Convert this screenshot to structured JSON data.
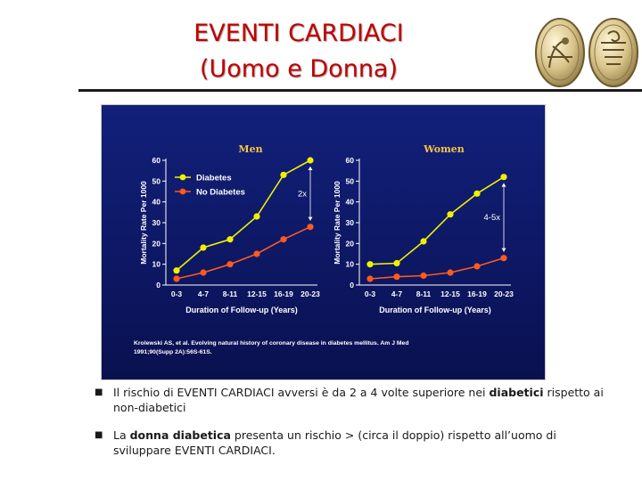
{
  "slide": {
    "title_line1": "EVENTI CARDIACI",
    "title_line2": "(Uomo e Donna)",
    "bullet_icon": "square-bullet",
    "bullets": [
      {
        "pre": "Il rischio di EVENTI CARDIACI avversi è da 2 a 4 volte superiore nei ",
        "bold": "diabetici",
        "post": " rispetto ai non-diabetici"
      },
      {
        "pre": "La ",
        "bold": "donna diabetica",
        "post": " presenta un rischio > (circa il doppio) rispetto all’uomo di sviluppare EVENTI CARDIACI."
      }
    ],
    "logo_icon": "medallion-coins-icon"
  },
  "figure": {
    "citation_line1": "Krolewski AS, et al. Evolving natural history of coronary disease in diabetes mellitus. Am J Med",
    "citation_line2": "1991;90(Supp 2A):56S-61S.",
    "colors": {
      "background": "#0f1a6e",
      "text": "#ffffff",
      "diabetes": "#f0f000",
      "no_diabetes": "#ff5a1e",
      "panel_title": "#f5c542"
    }
  },
  "chart_data": [
    {
      "type": "line",
      "title": "Men",
      "xlabel": "Duration of Follow-up (Years)",
      "ylabel": "Mortality Rate Per 1000",
      "categories": [
        "0-3",
        "4-7",
        "8-11",
        "12-15",
        "16-19",
        "20-23"
      ],
      "ylim": [
        0,
        60
      ],
      "yticks": [
        0,
        10,
        20,
        30,
        40,
        50,
        60
      ],
      "series": [
        {
          "name": "Diabetes",
          "values": [
            7,
            18,
            22,
            33,
            53,
            60
          ]
        },
        {
          "name": "No Diabetes",
          "values": [
            3,
            6,
            10,
            15,
            22,
            28
          ]
        }
      ],
      "legend": "top-left",
      "annotation": "2x"
    },
    {
      "type": "line",
      "title": "Women",
      "xlabel": "Duration of Follow-up (Years)",
      "ylabel": "Mortality Rate Per 1000",
      "categories": [
        "0-3",
        "4-7",
        "8-11",
        "12-15",
        "16-19",
        "20-23"
      ],
      "ylim": [
        0,
        60
      ],
      "yticks": [
        0,
        10,
        20,
        30,
        40,
        50,
        60
      ],
      "series": [
        {
          "name": "Diabetes",
          "values": [
            10,
            10.5,
            21,
            34,
            44,
            52
          ]
        },
        {
          "name": "No Diabetes",
          "values": [
            3,
            4,
            4.5,
            6,
            9,
            13
          ]
        }
      ],
      "annotation": "4-5x"
    }
  ]
}
